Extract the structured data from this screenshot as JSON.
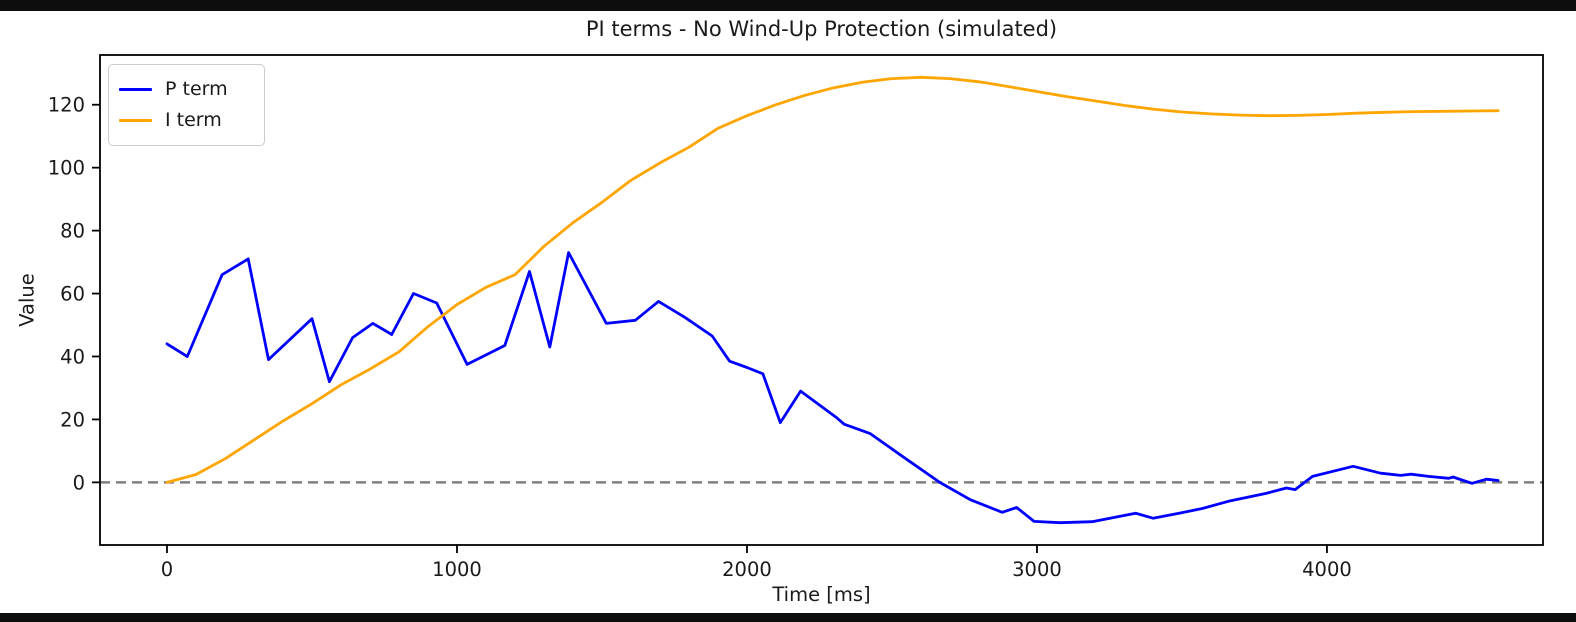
{
  "chart_data": {
    "type": "line",
    "title": "PI terms - No Wind-Up Protection (simulated)",
    "xlabel": "Time [ms]",
    "ylabel": "Value",
    "xlim": [
      -231,
      4745
    ],
    "ylim": [
      -19.9,
      135.8
    ],
    "xticks": [
      0,
      1000,
      2000,
      3000,
      4000
    ],
    "yticks": [
      0,
      20,
      40,
      60,
      80,
      100,
      120
    ],
    "grid": false,
    "legend_position": "upper-left",
    "reference_line": {
      "y": 0,
      "style": "dashed",
      "color": "#7f7f7f"
    },
    "series": [
      {
        "name": "P term",
        "color": "#0000ff",
        "points": [
          [
            0,
            44
          ],
          [
            70,
            40
          ],
          [
            190,
            66
          ],
          [
            280,
            71
          ],
          [
            350,
            39
          ],
          [
            500,
            52
          ],
          [
            560,
            32
          ],
          [
            640,
            46
          ],
          [
            710,
            50.5
          ],
          [
            775,
            47
          ],
          [
            850,
            60
          ],
          [
            930,
            57
          ],
          [
            1035,
            37.5
          ],
          [
            1165,
            43.5
          ],
          [
            1250,
            67
          ],
          [
            1320,
            43
          ],
          [
            1385,
            73
          ],
          [
            1515,
            50.5
          ],
          [
            1615,
            51.5
          ],
          [
            1695,
            57.5
          ],
          [
            1785,
            52.5
          ],
          [
            1880,
            46.5
          ],
          [
            1940,
            38.5
          ],
          [
            2000,
            36.5
          ],
          [
            2055,
            34.5
          ],
          [
            2115,
            19
          ],
          [
            2185,
            29
          ],
          [
            2310,
            20.5
          ],
          [
            2335,
            18.5
          ],
          [
            2425,
            15.5
          ],
          [
            2540,
            8
          ],
          [
            2665,
            0
          ],
          [
            2770,
            -5.5
          ],
          [
            2880,
            -9.5
          ],
          [
            2930,
            -8
          ],
          [
            2990,
            -12.4
          ],
          [
            3080,
            -12.8
          ],
          [
            3190,
            -12.5
          ],
          [
            3340,
            -9.8
          ],
          [
            3400,
            -11.4
          ],
          [
            3490,
            -9.8
          ],
          [
            3570,
            -8.3
          ],
          [
            3660,
            -6
          ],
          [
            3790,
            -3.5
          ],
          [
            3860,
            -1.8
          ],
          [
            3890,
            -2.3
          ],
          [
            3950,
            1.9
          ],
          [
            4090,
            5.1
          ],
          [
            4185,
            2.9
          ],
          [
            4255,
            2.2
          ],
          [
            4290,
            2.6
          ],
          [
            4350,
            1.9
          ],
          [
            4420,
            1.3
          ],
          [
            4435,
            1.7
          ],
          [
            4470,
            0.6
          ],
          [
            4500,
            -0.3
          ],
          [
            4550,
            1
          ],
          [
            4590,
            0.6
          ]
        ]
      },
      {
        "name": "I term",
        "color": "#ffa500",
        "points": [
          [
            0,
            0
          ],
          [
            100,
            2.5
          ],
          [
            200,
            7.5
          ],
          [
            300,
            13.5
          ],
          [
            400,
            19.5
          ],
          [
            500,
            25
          ],
          [
            600,
            31
          ],
          [
            700,
            36
          ],
          [
            800,
            41.5
          ],
          [
            900,
            49.5
          ],
          [
            1000,
            56.5
          ],
          [
            1100,
            62
          ],
          [
            1200,
            66
          ],
          [
            1300,
            75
          ],
          [
            1400,
            82.5
          ],
          [
            1500,
            89
          ],
          [
            1600,
            96
          ],
          [
            1700,
            101.5
          ],
          [
            1800,
            106.5
          ],
          [
            1900,
            112.5
          ],
          [
            2000,
            116.5
          ],
          [
            2100,
            120
          ],
          [
            2200,
            123
          ],
          [
            2300,
            125.4
          ],
          [
            2400,
            127.2
          ],
          [
            2500,
            128.3
          ],
          [
            2600,
            128.7
          ],
          [
            2700,
            128.3
          ],
          [
            2800,
            127.3
          ],
          [
            2900,
            125.8
          ],
          [
            3000,
            124.2
          ],
          [
            3100,
            122.6
          ],
          [
            3200,
            121.2
          ],
          [
            3300,
            119.8
          ],
          [
            3400,
            118.6
          ],
          [
            3500,
            117.7
          ],
          [
            3600,
            117.1
          ],
          [
            3700,
            116.7
          ],
          [
            3800,
            116.5
          ],
          [
            3900,
            116.6
          ],
          [
            4000,
            116.9
          ],
          [
            4100,
            117.3
          ],
          [
            4200,
            117.6
          ],
          [
            4300,
            117.8
          ],
          [
            4400,
            117.9
          ],
          [
            4500,
            118
          ],
          [
            4590,
            118.1
          ]
        ]
      }
    ]
  }
}
